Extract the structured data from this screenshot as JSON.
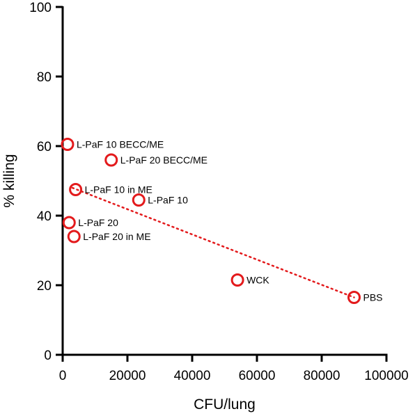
{
  "chart_data": {
    "type": "scatter",
    "xlabel": "CFU/lung",
    "ylabel": "% killing",
    "xlim": [
      0,
      100000
    ],
    "ylim": [
      0,
      100
    ],
    "x_ticks": [
      0,
      20000,
      40000,
      60000,
      80000,
      100000
    ],
    "y_ticks": [
      0,
      20,
      40,
      60,
      80,
      100
    ],
    "grid": false,
    "marker_color": "#e31a1c",
    "points": [
      {
        "label": "L-PaF 10 BECC/ME",
        "x": 1500,
        "y": 60.5
      },
      {
        "label": "L-PaF 20 BECC/ME",
        "x": 15000,
        "y": 56.0
      },
      {
        "label": "L-PaF 10 in ME",
        "x": 4000,
        "y": 47.5
      },
      {
        "label": "L-PaF 10",
        "x": 23500,
        "y": 44.5
      },
      {
        "label": "L-PaF 20",
        "x": 2000,
        "y": 38.0
      },
      {
        "label": "L-PaF 20 in ME",
        "x": 3500,
        "y": 34.0
      },
      {
        "label": "WCK",
        "x": 54000,
        "y": 21.5
      },
      {
        "label": "PBS",
        "x": 90000,
        "y": 16.5
      }
    ],
    "trendline": {
      "x": [
        3000,
        90000
      ],
      "y": [
        48.0,
        16.5
      ]
    }
  }
}
